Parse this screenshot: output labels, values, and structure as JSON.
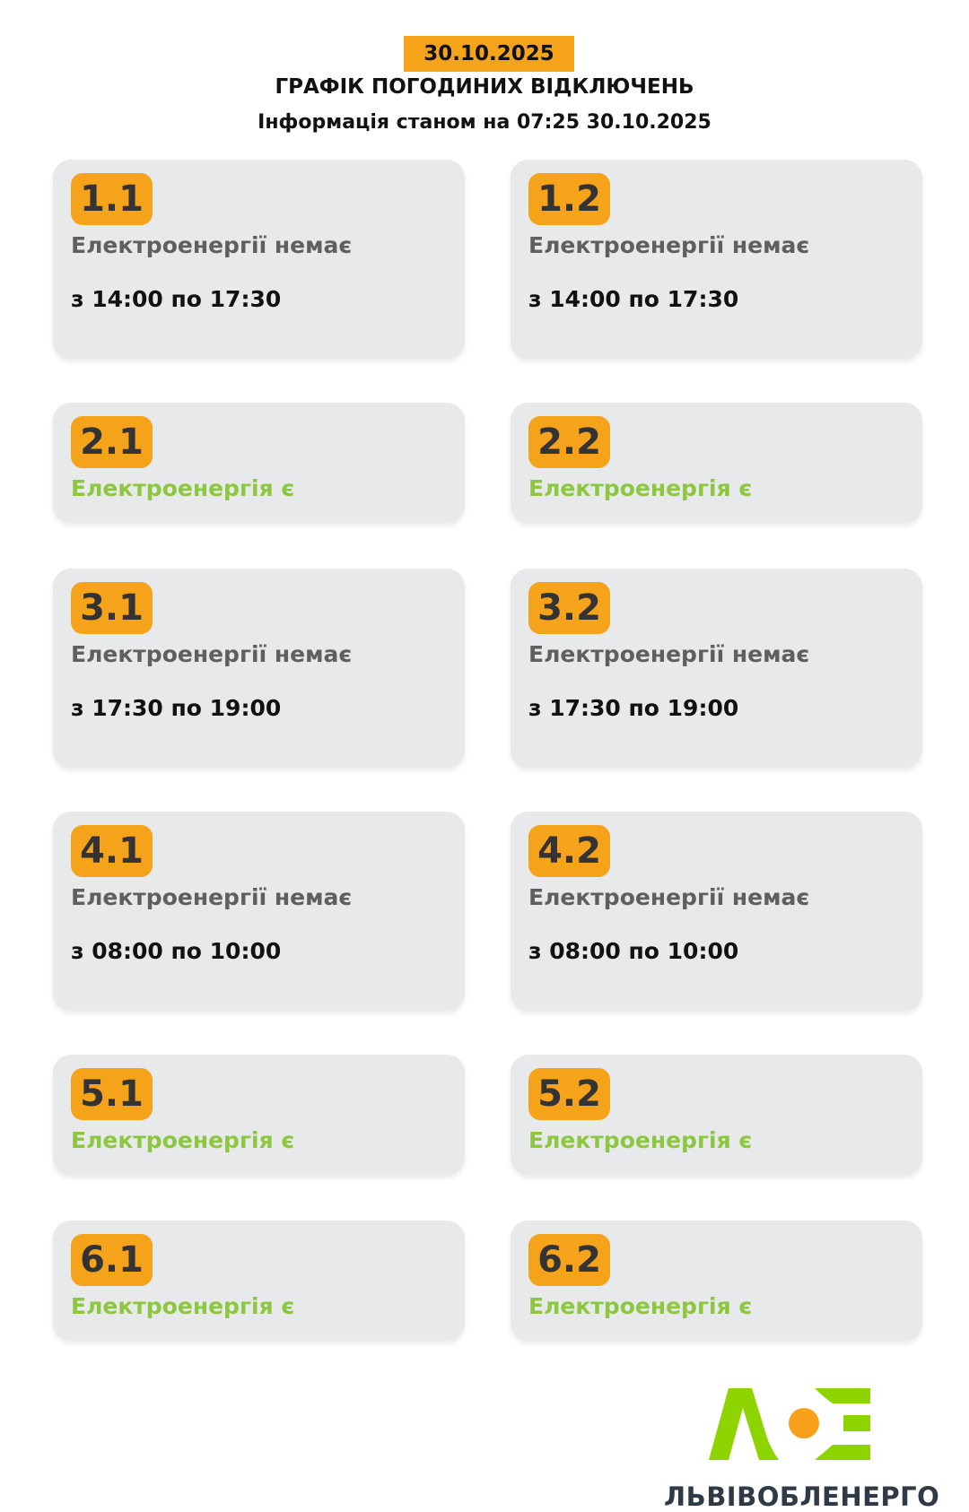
{
  "header": {
    "date": "30.10.2025",
    "title": "ГРАФІК ПОГОДИНИХ ВІДКЛЮЧЕНЬ",
    "subtitle": "Інформація станом на 07:25 30.10.2025"
  },
  "colors": {
    "accent": "#f5a31a",
    "power_on": "#8dc63f",
    "power_off": "#5f5f5f",
    "card_bg": "#e8e9eb"
  },
  "groups": [
    {
      "id": "1.1",
      "status": "Електроенергії немає",
      "time": "з 14:00 по 17:30"
    },
    {
      "id": "1.2",
      "status": "Електроенергії немає",
      "time": "з 14:00 по 17:30"
    },
    {
      "id": "2.1",
      "status": "Електроенергія є"
    },
    {
      "id": "2.2",
      "status": "Електроенергія є"
    },
    {
      "id": "3.1",
      "status": "Електроенергії немає",
      "time": "з 17:30 по 19:00"
    },
    {
      "id": "3.2",
      "status": "Електроенергії немає",
      "time": "з 17:30 по 19:00"
    },
    {
      "id": "4.1",
      "status": "Електроенергії немає",
      "time": "з 08:00 по 10:00"
    },
    {
      "id": "4.2",
      "status": "Електроенергії немає",
      "time": "з 08:00 по 10:00"
    },
    {
      "id": "5.1",
      "status": "Електроенергія є"
    },
    {
      "id": "5.2",
      "status": "Електроенергія є"
    },
    {
      "id": "6.1",
      "status": "Електроенергія є"
    },
    {
      "id": "6.2",
      "status": "Електроенергія є"
    }
  ],
  "footer": {
    "brand": "ЛЬВІВОБЛЕНЕРГО",
    "logo_text": "ЛОЕ"
  }
}
